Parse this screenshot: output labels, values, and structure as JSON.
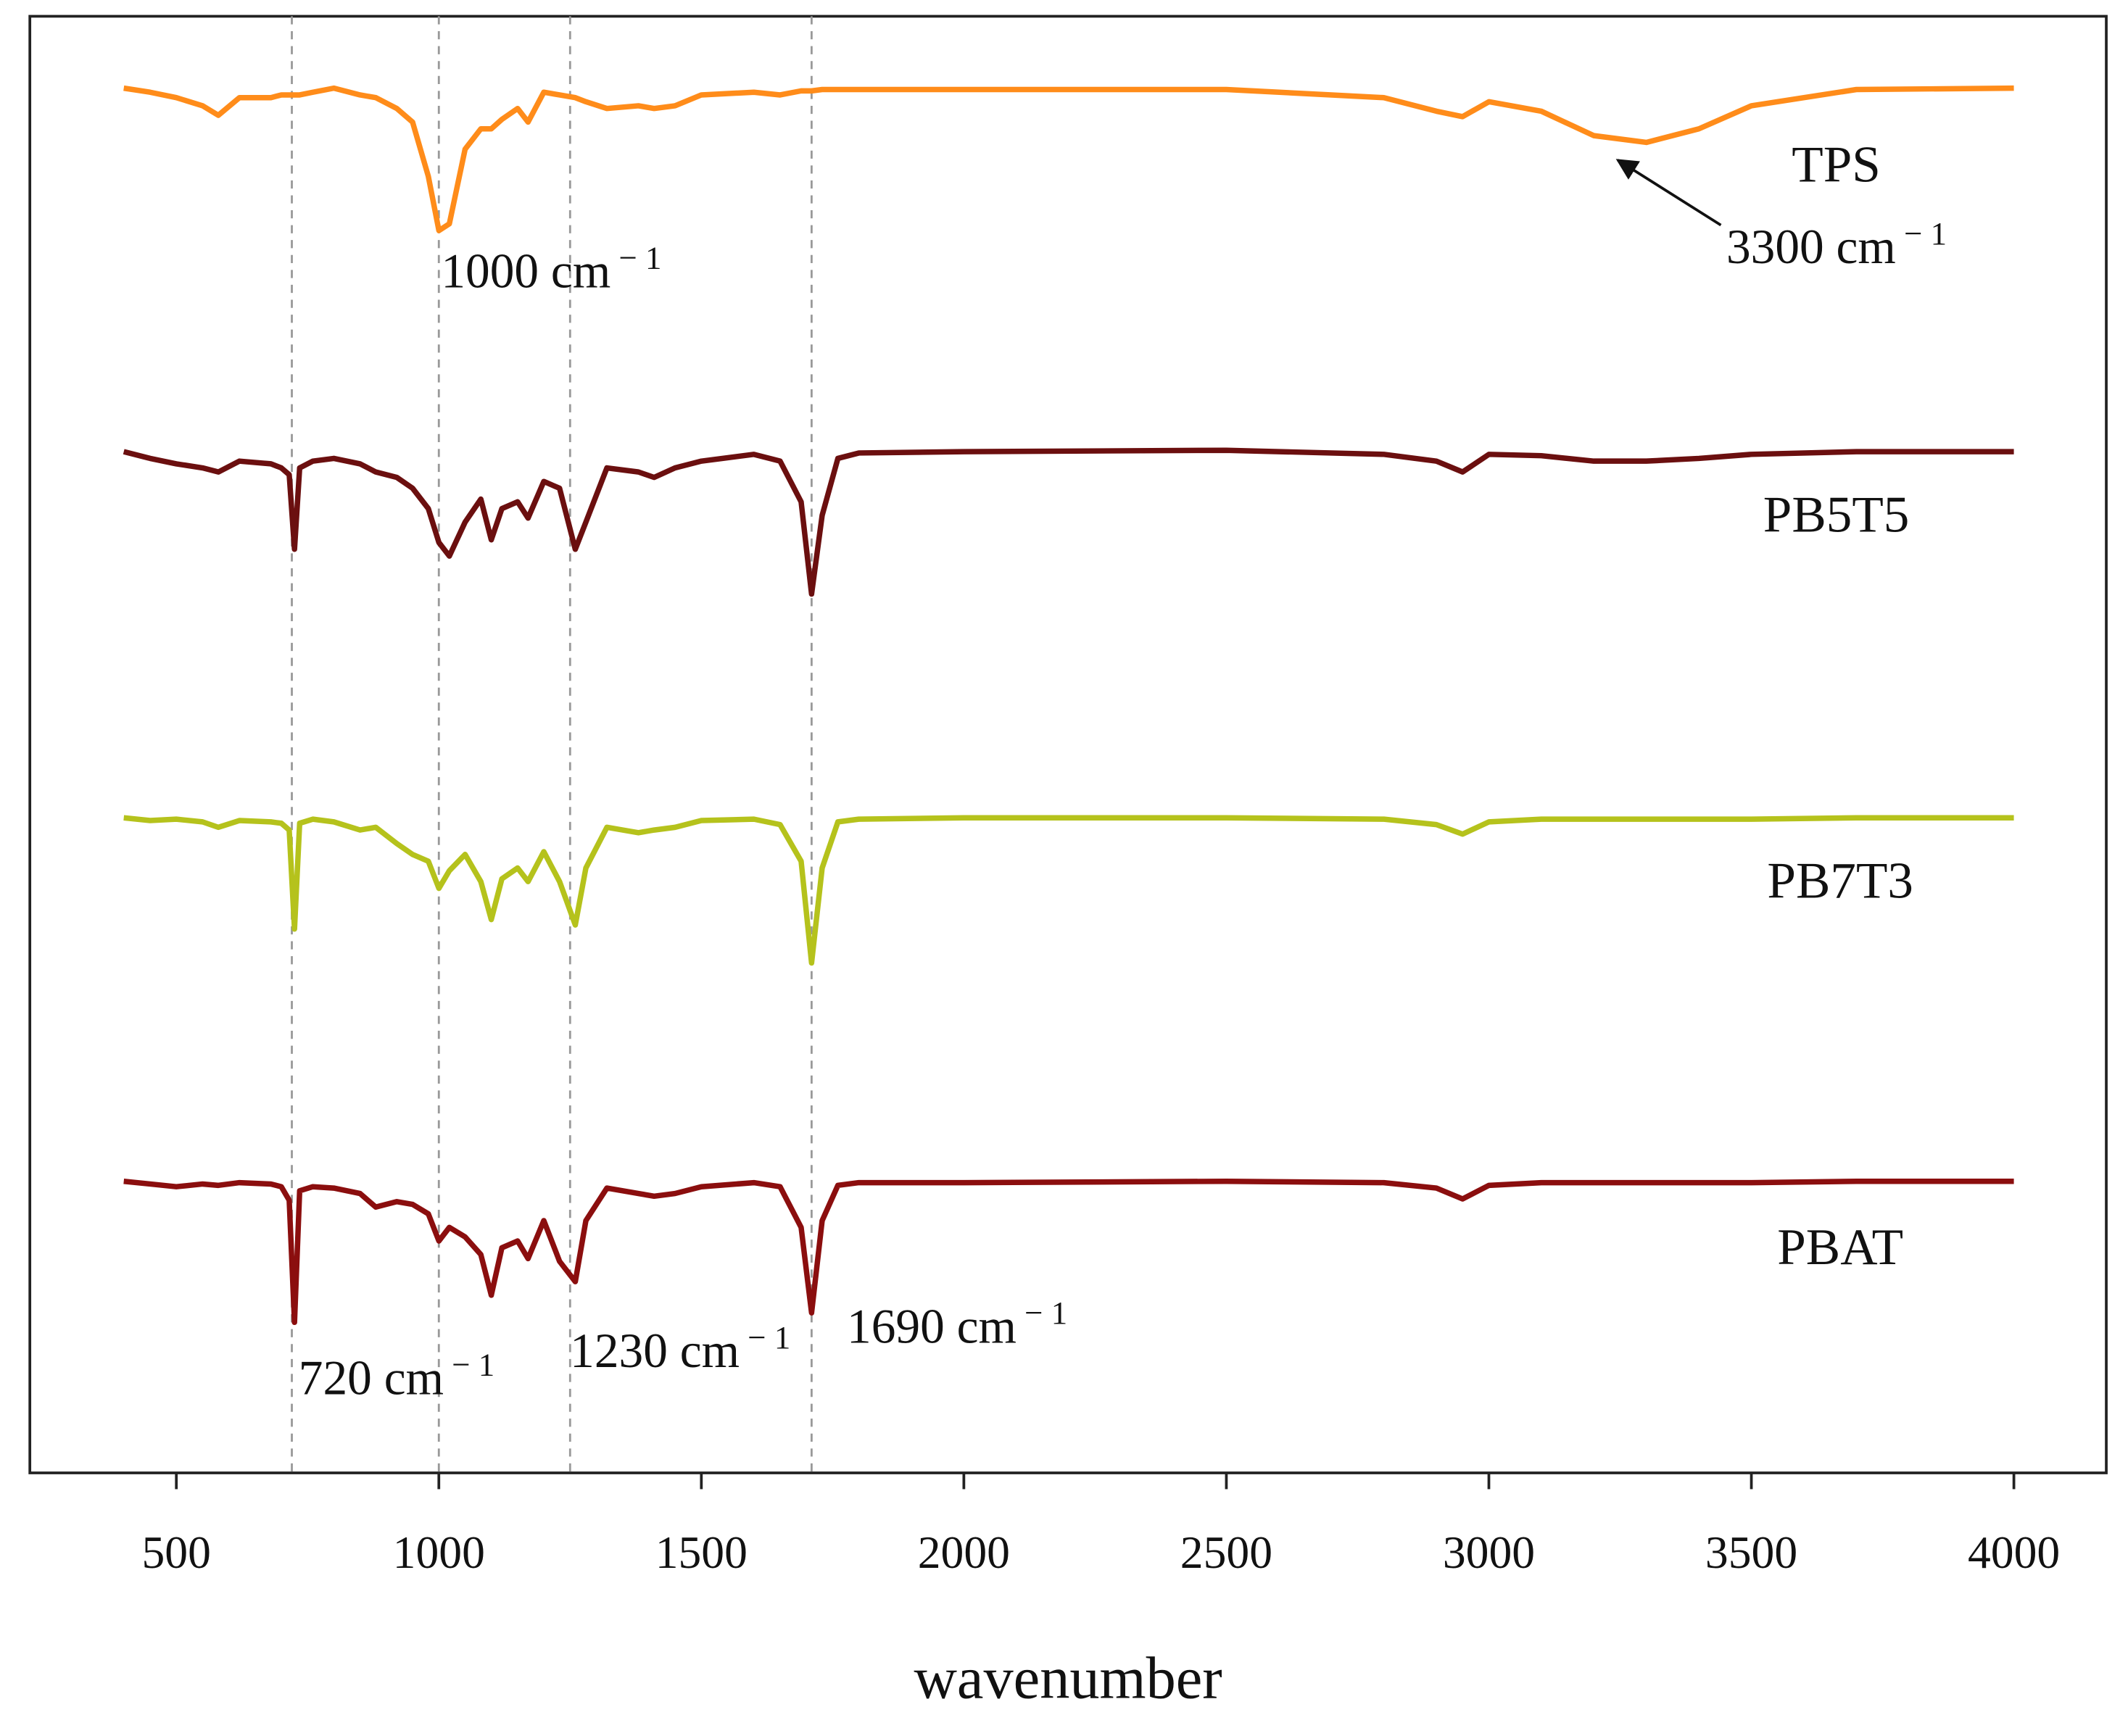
{
  "chart_data": {
    "type": "line",
    "xlabel": "wavenumber",
    "xlim": [
      221,
      4176
    ],
    "ylim": [
      0,
      1074
    ],
    "xticks": [
      500,
      1000,
      1500,
      2000,
      2500,
      3000,
      3500,
      4000
    ],
    "vlines": [
      720,
      1000,
      1250,
      1710
    ],
    "x": [
      400,
      450,
      500,
      550,
      580,
      620,
      680,
      700,
      715,
      725,
      735,
      760,
      800,
      850,
      880,
      920,
      950,
      980,
      1000,
      1020,
      1050,
      1080,
      1100,
      1120,
      1150,
      1170,
      1200,
      1230,
      1260,
      1280,
      1320,
      1380,
      1410,
      1450,
      1500,
      1600,
      1650,
      1690,
      1710,
      1730,
      1760,
      1800,
      2000,
      2500,
      2800,
      2900,
      2950,
      3000,
      3100,
      3200,
      3300,
      3400,
      3500,
      3700,
      4000
    ],
    "series": [
      {
        "name": "TPS",
        "color": "#ff8c1a",
        "values": [
          1021,
          1018,
          1014,
          1008,
          1001,
          1014,
          1014,
          1016,
          1016,
          1016,
          1016,
          1018,
          1021,
          1016,
          1014,
          1006,
          996,
          956,
          916,
          921,
          976,
          991,
          991,
          998,
          1006,
          996,
          1018,
          1016,
          1014,
          1011,
          1006,
          1008,
          1006,
          1008,
          1016,
          1018,
          1016,
          1019,
          1019,
          1020,
          1020,
          1020,
          1020,
          1020,
          1014,
          1004,
          1000,
          1011,
          1004,
          986,
          981,
          991,
          1008,
          1020,
          1021
        ]
      },
      {
        "name": "PB5T5",
        "color": "#6b0f0f",
        "values": [
          753,
          748,
          744,
          741,
          738,
          746,
          744,
          741,
          736,
          681,
          741,
          746,
          748,
          744,
          738,
          734,
          726,
          711,
          686,
          676,
          701,
          718,
          688,
          711,
          716,
          704,
          731,
          726,
          681,
          701,
          741,
          738,
          734,
          741,
          746,
          751,
          746,
          716,
          648,
          706,
          748,
          752,
          753,
          754,
          751,
          746,
          738,
          751,
          750,
          746,
          746,
          748,
          751,
          753,
          753
        ]
      },
      {
        "name": "PB7T3",
        "color": "#b5c21c",
        "values": [
          483,
          481,
          482,
          480,
          476,
          481,
          480,
          479,
          474,
          401,
          479,
          482,
          480,
          474,
          476,
          464,
          456,
          451,
          431,
          444,
          456,
          436,
          408,
          438,
          446,
          436,
          458,
          436,
          404,
          446,
          476,
          472,
          474,
          476,
          481,
          482,
          478,
          451,
          376,
          446,
          480,
          482,
          483,
          483,
          482,
          478,
          471,
          480,
          482,
          482,
          482,
          482,
          482,
          483,
          483
        ]
      },
      {
        "name": "PBAT",
        "color": "#8b0e0e",
        "values": [
          215,
          213,
          211,
          213,
          212,
          214,
          213,
          211,
          201,
          111,
          208,
          211,
          210,
          206,
          196,
          200,
          198,
          191,
          171,
          181,
          174,
          161,
          131,
          166,
          171,
          158,
          186,
          156,
          141,
          186,
          210,
          206,
          204,
          206,
          211,
          214,
          211,
          181,
          118,
          186,
          212,
          214,
          214,
          215,
          214,
          210,
          202,
          212,
          214,
          214,
          214,
          214,
          214,
          215,
          215
        ]
      }
    ],
    "annotations": [
      {
        "text": "1000 cm",
        "sup": "− 1"
      },
      {
        "text": "3300 cm",
        "sup": "− 1"
      },
      {
        "text": "720 cm",
        "sup": "− 1"
      },
      {
        "text": "1230 cm",
        "sup": "− 1"
      },
      {
        "text": "1690 cm",
        "sup": "− 1"
      }
    ]
  }
}
